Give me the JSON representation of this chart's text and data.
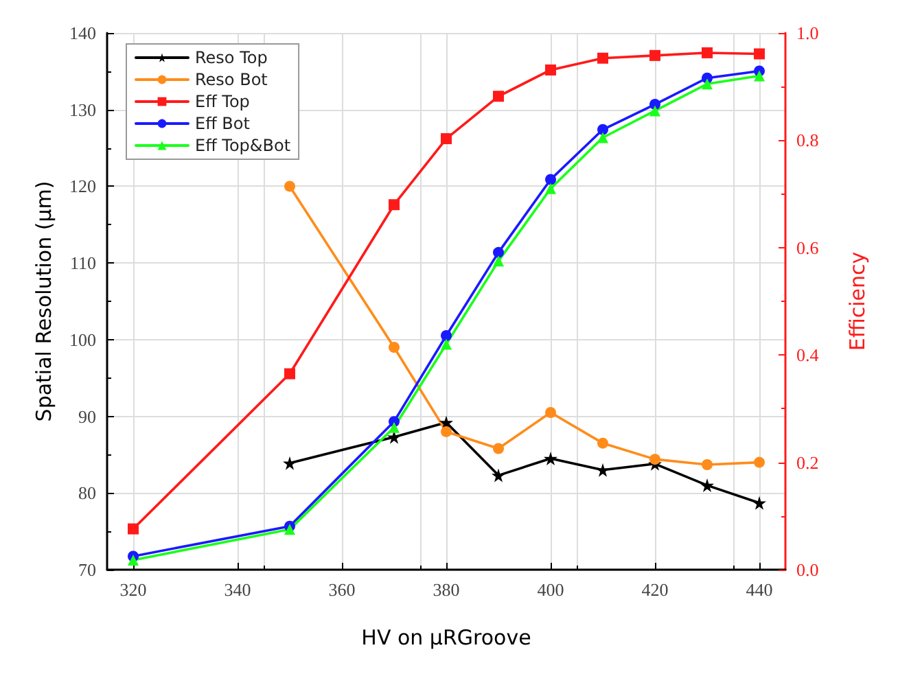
{
  "chart_data": {
    "type": "line",
    "xlabel": "HV on μRGroove",
    "ylabel": "Spatial Resolution (μm)",
    "y2label": "Efficiency",
    "x": [
      320,
      350,
      370,
      380,
      390,
      400,
      410,
      420,
      430,
      440
    ],
    "xlim": [
      315,
      445
    ],
    "xticks": [
      320,
      340,
      360,
      380,
      400,
      420,
      440
    ],
    "ylim": [
      70,
      140
    ],
    "yticks": [
      70,
      80,
      90,
      100,
      110,
      120,
      130,
      140
    ],
    "y2lim": [
      0,
      1
    ],
    "y2ticks": [
      {
        "value": 0,
        "label": "0.0"
      },
      {
        "value": 0.2,
        "label": "0.2"
      },
      {
        "value": 0.4,
        "label": "0.4"
      },
      {
        "value": 0.6,
        "label": "0.6"
      },
      {
        "value": 0.8,
        "label": "0.8"
      },
      {
        "value": 1,
        "label": "1.0"
      }
    ],
    "grid": true,
    "legend": "top left",
    "series": [
      {
        "name": "Reso Top",
        "color": "#000000",
        "marker": "star",
        "values": [
          null,
          83.9,
          87.3,
          89.2,
          82.3,
          84.5,
          83.0,
          83.8,
          81.0,
          78.7
        ]
      },
      {
        "name": "Reso Bot",
        "color": "#ff8c1a",
        "marker": "circle",
        "values": [
          null,
          120,
          99,
          88,
          85.8,
          90.5,
          86.5,
          84.4,
          83.7,
          84.0
        ]
      },
      {
        "name": "Eff Top",
        "color": "#ff1a1a",
        "marker": "square",
        "axis": "y2",
        "values": [
          0.076,
          0.365,
          0.68,
          0.803,
          0.882,
          0.931,
          0.953,
          0.958,
          0.963,
          0.961
        ]
      },
      {
        "name": "Eff Bot",
        "color": "#1a1aff",
        "marker": "circle",
        "axis": "y2",
        "values": [
          0.025,
          0.081,
          0.276,
          0.436,
          0.591,
          0.727,
          0.82,
          0.867,
          0.916,
          0.929
        ]
      },
      {
        "name": "Eff Top&Bot",
        "color": "#1aff1a",
        "marker": "triangle",
        "axis": "y2",
        "values": [
          0.018,
          0.075,
          0.265,
          0.42,
          0.575,
          0.71,
          0.805,
          0.855,
          0.905,
          0.92
        ]
      }
    ]
  }
}
